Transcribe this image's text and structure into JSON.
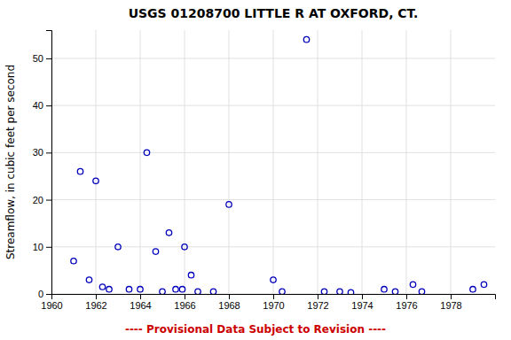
{
  "chart_data": {
    "type": "scatter",
    "title": "USGS 01208700 LITTLE R AT OXFORD, CT.",
    "ylabel": "Streamflow, in cubic feet per second",
    "annotations": [
      "---- Provisional Data Subject to Revision ----"
    ],
    "x": [
      1961.0,
      1961.3,
      1961.7,
      1962.0,
      1962.3,
      1962.6,
      1963.0,
      1963.5,
      1964.0,
      1964.3,
      1964.7,
      1965.0,
      1965.3,
      1965.6,
      1965.9,
      1966.0,
      1966.3,
      1966.6,
      1967.3,
      1968.0,
      1970.0,
      1970.4,
      1971.5,
      1972.3,
      1973.0,
      1973.5,
      1975.0,
      1975.5,
      1976.3,
      1976.7,
      1979.0,
      1979.5
    ],
    "values": [
      7,
      26,
      3,
      24,
      1.5,
      1,
      10,
      1,
      1,
      30,
      9,
      0.5,
      13,
      1,
      1,
      10,
      4,
      0.5,
      0.5,
      19,
      3,
      0.5,
      54,
      0.5,
      0.5,
      0.3,
      1,
      0.5,
      2,
      0.5,
      1,
      2
    ],
    "color": "#0000bb",
    "marker": "circle",
    "xlim": [
      1960,
      1980
    ],
    "ylim": [
      0,
      56
    ],
    "xticks": [
      1960,
      1962,
      1964,
      1966,
      1968,
      1970,
      1972,
      1974,
      1976,
      1978
    ],
    "yticks": [
      0,
      10,
      20,
      30,
      40,
      50
    ],
    "grid": true
  }
}
